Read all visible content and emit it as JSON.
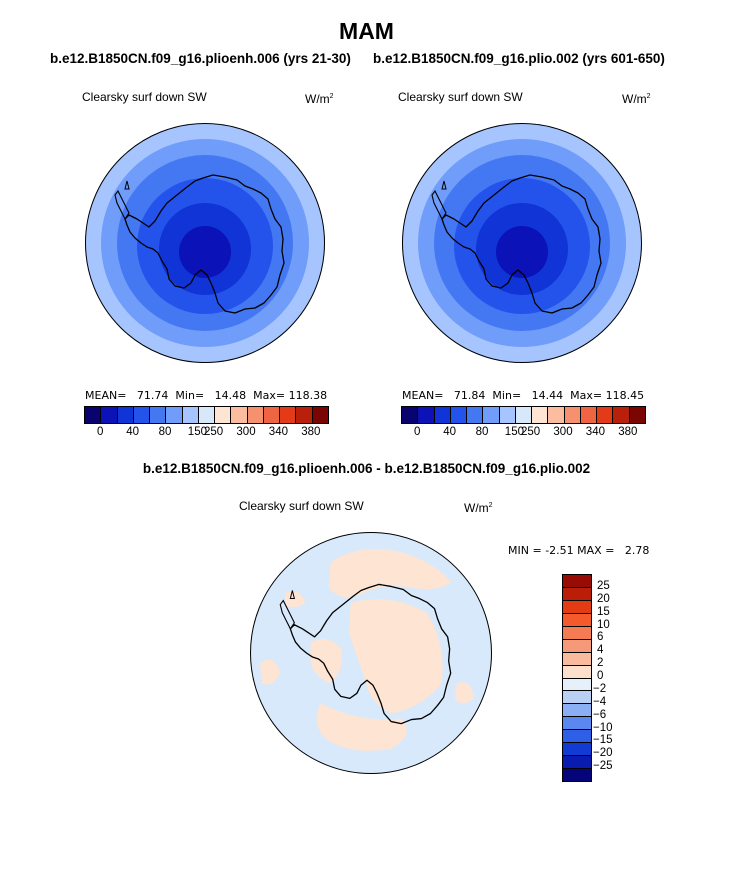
{
  "title": "MAM",
  "case_left": "b.e12.B1850CN.f09_g16.plioenh.006 (yrs 21-30)",
  "case_right": "b.e12.B1850CN.f09_g16.plio.002 (yrs 601-650)",
  "diff_title": "b.e12.B1850CN.f09_g16.plioenh.006 - b.e12.B1850CN.f09_g16.plio.002",
  "panels": {
    "left": {
      "label": "Clearsky surf down SW",
      "units": "W/m",
      "units_sup": "2",
      "stats": {
        "mean_label": "MEAN=",
        "mean": "71.74",
        "min_label": "Min=",
        "min": "14.48",
        "max_label": "Max=",
        "max": "118.38"
      }
    },
    "right": {
      "label": "Clearsky surf down SW",
      "units": "W/m",
      "units_sup": "2",
      "stats": {
        "mean_label": "MEAN=",
        "mean": "71.84",
        "min_label": "Min=",
        "min": "14.44",
        "max_label": "Max=",
        "max": "118.45"
      }
    },
    "diff": {
      "label": "Clearsky surf down SW",
      "units": "W/m",
      "units_sup": "2",
      "stats": {
        "min_label": "MIN =",
        "min": "-2.51",
        "max_label": "MAX =",
        "max": "2.78"
      }
    }
  },
  "colorbar_main": {
    "colors": [
      "#08036e",
      "#0a12b8",
      "#1034d6",
      "#2453ec",
      "#4478f3",
      "#709cfa",
      "#a6c5ff",
      "#d7e8fb",
      "#fde4d3",
      "#fbbca0",
      "#f5916e",
      "#ef6543",
      "#e33b17",
      "#b8200b",
      "#7a0604"
    ],
    "ticks": [
      "0",
      "40",
      "80",
      "150",
      "250",
      "300",
      "340",
      "380"
    ]
  },
  "colorbar_diff": {
    "colors": [
      "#970c05",
      "#bb1e08",
      "#e33b14",
      "#f55a2c",
      "#f57b52",
      "#f59a78",
      "#f9bb9d",
      "#fde0cc",
      "#e6f0fb",
      "#b9d0f4",
      "#8aaff5",
      "#5a87f0",
      "#2e5fe6",
      "#113bd2",
      "#0a1bb0",
      "#05047a"
    ],
    "ticks": [
      "25",
      "20",
      "15",
      "10",
      "6",
      "4",
      "2",
      "0",
      "-2",
      "-4",
      "-6",
      "-10",
      "-15",
      "-20",
      "-25"
    ]
  },
  "map_colors": {
    "ring1": "#a6c5ff",
    "ring2": "#709cfa",
    "ring3": "#4478f3",
    "ring4": "#2453ec",
    "ring5": "#1034d6",
    "ring6": "#0a12b8",
    "diff_bg": "#d7e9fb",
    "diff_pos": "#fde4d3"
  }
}
